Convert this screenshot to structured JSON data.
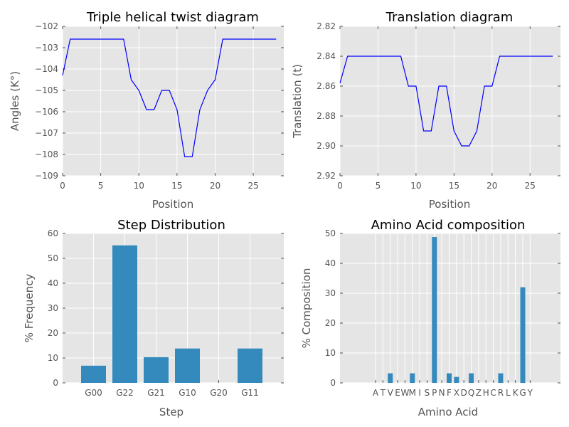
{
  "chart_data": [
    {
      "type": "line",
      "title": "Triple helical twist diagram",
      "xlabel": "Position",
      "ylabel": "Angles (K°)",
      "xlim": [
        0,
        29
      ],
      "ylim": [
        -109,
        -102
      ],
      "xticks": [
        0,
        5,
        10,
        15,
        20,
        25
      ],
      "yticks": [
        -109,
        -108,
        -107,
        -106,
        -105,
        -104,
        -103,
        -102
      ],
      "grid": true,
      "color": "#0000ff",
      "x": [
        0,
        1,
        2,
        3,
        4,
        5,
        6,
        7,
        8,
        9,
        10,
        11,
        12,
        13,
        14,
        15,
        16,
        17,
        18,
        19,
        20,
        21,
        22,
        23,
        24,
        25,
        26,
        27,
        28
      ],
      "y": [
        -104.3,
        -102.6,
        -102.6,
        -102.6,
        -102.6,
        -102.6,
        -102.6,
        -102.6,
        -102.6,
        -104.5,
        -105.0,
        -105.9,
        -105.9,
        -105.0,
        -105.0,
        -105.9,
        -108.1,
        -108.1,
        -105.9,
        -105.0,
        -104.5,
        -102.6,
        -102.6,
        -102.6,
        -102.6,
        -102.6,
        -102.6,
        -102.6,
        -102.6
      ]
    },
    {
      "type": "line",
      "title": "Translation diagram",
      "xlabel": "Position",
      "ylabel": "Translation (t)",
      "xlim": [
        0,
        29
      ],
      "ylim": [
        2.92,
        2.82
      ],
      "inverted_y": true,
      "xticks": [
        0,
        5,
        10,
        15,
        20,
        25
      ],
      "yticks": [
        2.82,
        2.84,
        2.86,
        2.88,
        2.9,
        2.92
      ],
      "ytick_labels": [
        "2.82",
        "2.84",
        "2.86",
        "2.88",
        "2.90",
        "2.92"
      ],
      "grid": true,
      "color": "#0000ff",
      "x": [
        0,
        1,
        2,
        3,
        4,
        5,
        6,
        7,
        8,
        9,
        10,
        11,
        12,
        13,
        14,
        15,
        16,
        17,
        18,
        19,
        20,
        21,
        22,
        23,
        24,
        25,
        26,
        27,
        28
      ],
      "y": [
        2.858,
        2.84,
        2.84,
        2.84,
        2.84,
        2.84,
        2.84,
        2.84,
        2.84,
        2.86,
        2.86,
        2.89,
        2.89,
        2.86,
        2.86,
        2.89,
        2.9,
        2.9,
        2.89,
        2.86,
        2.86,
        2.84,
        2.84,
        2.84,
        2.84,
        2.84,
        2.84,
        2.84,
        2.84
      ]
    },
    {
      "type": "bar",
      "title": "Step Distribution",
      "xlabel": "Step",
      "ylabel": "% Frequency",
      "ylim": [
        0,
        60
      ],
      "yticks": [
        0,
        10,
        20,
        30,
        40,
        50,
        60
      ],
      "grid": true,
      "color": "#348abd",
      "categories": [
        "G00",
        "G22",
        "G21",
        "G10",
        "G20",
        "G11"
      ],
      "values": [
        6.9,
        55.2,
        10.3,
        13.8,
        0,
        13.8
      ]
    },
    {
      "type": "bar",
      "title": "Amino Acid composition",
      "xlabel": "Amino Acid",
      "ylabel": "% Composition",
      "ylim": [
        0,
        50
      ],
      "yticks": [
        0,
        10,
        20,
        30,
        40,
        50
      ],
      "grid": true,
      "color": "#348abd",
      "categories": [
        "A",
        "T",
        "V",
        "E",
        "W",
        "M",
        "I",
        "S",
        "P",
        "N",
        "F",
        "X",
        "D",
        "Q",
        "Z",
        "H",
        "C",
        "R",
        "L",
        "K",
        "G",
        "Y"
      ],
      "values": [
        0,
        0,
        3.2,
        0,
        0,
        3.2,
        0,
        0,
        48.8,
        0,
        3.2,
        2.0,
        0,
        3.2,
        0,
        0,
        0,
        3.2,
        0,
        0,
        32.0,
        0
      ]
    }
  ]
}
